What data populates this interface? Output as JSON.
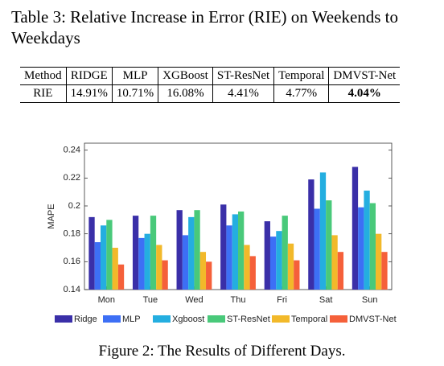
{
  "table": {
    "caption": "Table 3: Relative Increase in Error (RIE) on Weekends to Weekdays",
    "header": [
      "Method",
      "RIDGE",
      "MLP",
      "XGBoost",
      "ST-ResNet",
      "Temporal",
      "DMVST-Net"
    ],
    "rows": [
      [
        "RIE",
        "14.91%",
        "10.71%",
        "16.08%",
        "4.41%",
        "4.77%",
        "4.04%"
      ]
    ]
  },
  "chart_data": {
    "type": "bar",
    "ylabel": "MAPE",
    "categories": [
      "Mon",
      "Tue",
      "Wed",
      "Thu",
      "Fri",
      "Sat",
      "Sun"
    ],
    "series": [
      {
        "name": "Ridge",
        "color": "#3a2fa8",
        "values": [
          0.192,
          0.193,
          0.197,
          0.201,
          0.189,
          0.219,
          0.228
        ]
      },
      {
        "name": "MLP",
        "color": "#3d6ff5",
        "values": [
          0.174,
          0.177,
          0.179,
          0.186,
          0.178,
          0.198,
          0.199
        ]
      },
      {
        "name": "Xgboost",
        "color": "#24aee0",
        "values": [
          0.186,
          0.18,
          0.192,
          0.194,
          0.182,
          0.224,
          0.211
        ]
      },
      {
        "name": "ST-ResNet",
        "color": "#49c97a",
        "values": [
          0.19,
          0.193,
          0.197,
          0.196,
          0.193,
          0.204,
          0.202
        ]
      },
      {
        "name": "Temporal",
        "color": "#f2b92a",
        "values": [
          0.17,
          0.172,
          0.167,
          0.172,
          0.173,
          0.179,
          0.18
        ]
      },
      {
        "name": "DMVST-Net",
        "color": "#f5603a",
        "values": [
          0.158,
          0.161,
          0.16,
          0.164,
          0.161,
          0.167,
          0.167
        ]
      }
    ],
    "ylim": [
      0.14,
      0.245
    ],
    "yticks": [
      0.14,
      0.16,
      0.18,
      0.2,
      0.22,
      0.24
    ],
    "legend": "bottom"
  },
  "figure_caption": "Figure 2: The Results of Different Days."
}
